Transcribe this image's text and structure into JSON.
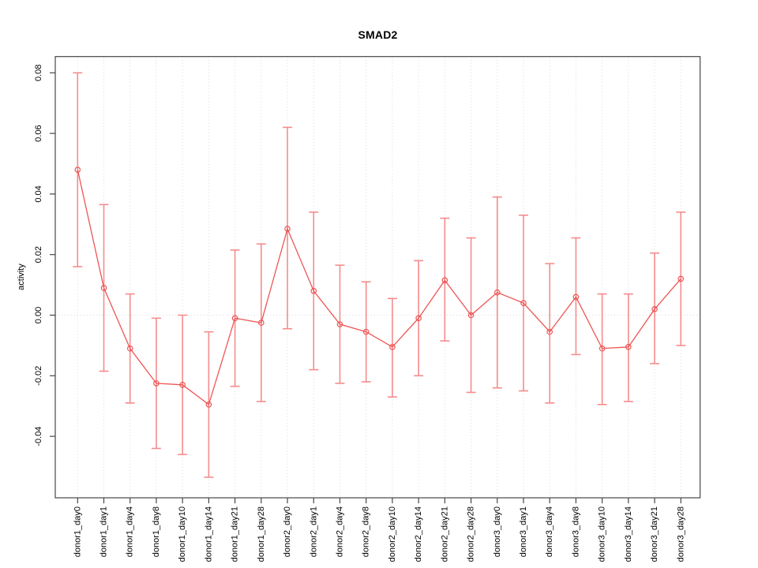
{
  "window": {
    "background": "#ffffff"
  },
  "chart_data": {
    "type": "line",
    "subtype": "points-with-error-bars",
    "title": "SMAD2",
    "xlabel": "",
    "ylabel": "activity",
    "legend": "none",
    "marker": "open-circle",
    "grid": {
      "vertical_dotted_per_category": true,
      "horizontal_dotted_zero_line": true
    },
    "ylim": [
      -0.0605,
      0.0855
    ],
    "yticks": [
      0.08,
      0.06,
      0.04,
      0.02,
      0.0,
      -0.02,
      -0.04
    ],
    "ytick_labels": [
      "0.08",
      "0.06",
      "0.04",
      "0.02",
      "0.00",
      "-0.02",
      "-0.04"
    ],
    "categories": [
      "donor1_day0",
      "donor1_day1",
      "donor1_day4",
      "donor1_day8",
      "donor1_day10",
      "donor1_day14",
      "donor1_day21",
      "donor1_day28",
      "donor2_day0",
      "donor2_day1",
      "donor2_day4",
      "donor2_day8",
      "donor2_day10",
      "donor2_day14",
      "donor2_day21",
      "donor2_day28",
      "donor3_day0",
      "donor3_day1",
      "donor3_day4",
      "donor3_day8",
      "donor3_day10",
      "donor3_day14",
      "donor3_day21",
      "donor3_day28"
    ],
    "series": [
      {
        "name": "activity",
        "values": [
          0.048,
          0.009,
          -0.011,
          -0.0225,
          -0.023,
          -0.0295,
          -0.001,
          -0.0025,
          0.0285,
          0.008,
          -0.003,
          -0.0055,
          -0.0105,
          -0.001,
          0.0115,
          0.0,
          0.0075,
          0.004,
          -0.0055,
          0.006,
          -0.011,
          -0.0105,
          0.002,
          0.012
        ],
        "upper": [
          0.08,
          0.0365,
          0.007,
          -0.001,
          0.0,
          -0.0055,
          0.0215,
          0.0235,
          0.062,
          0.034,
          0.0165,
          0.011,
          0.0055,
          0.018,
          0.032,
          0.0255,
          0.039,
          0.033,
          0.017,
          0.0255,
          0.007,
          0.007,
          0.0205,
          0.034
        ],
        "lower": [
          0.016,
          -0.0185,
          -0.029,
          -0.044,
          -0.046,
          -0.0535,
          -0.0235,
          -0.0285,
          -0.0045,
          -0.018,
          -0.0225,
          -0.022,
          -0.027,
          -0.02,
          -0.0085,
          -0.0255,
          -0.024,
          -0.025,
          -0.029,
          -0.013,
          -0.0295,
          -0.0285,
          -0.016,
          -0.01
        ]
      }
    ],
    "colors": {
      "point_line": "#ee5555",
      "error_bar": "#f58c8c",
      "grid": "#dadada",
      "axis": "#454545",
      "text": "#000000"
    }
  }
}
